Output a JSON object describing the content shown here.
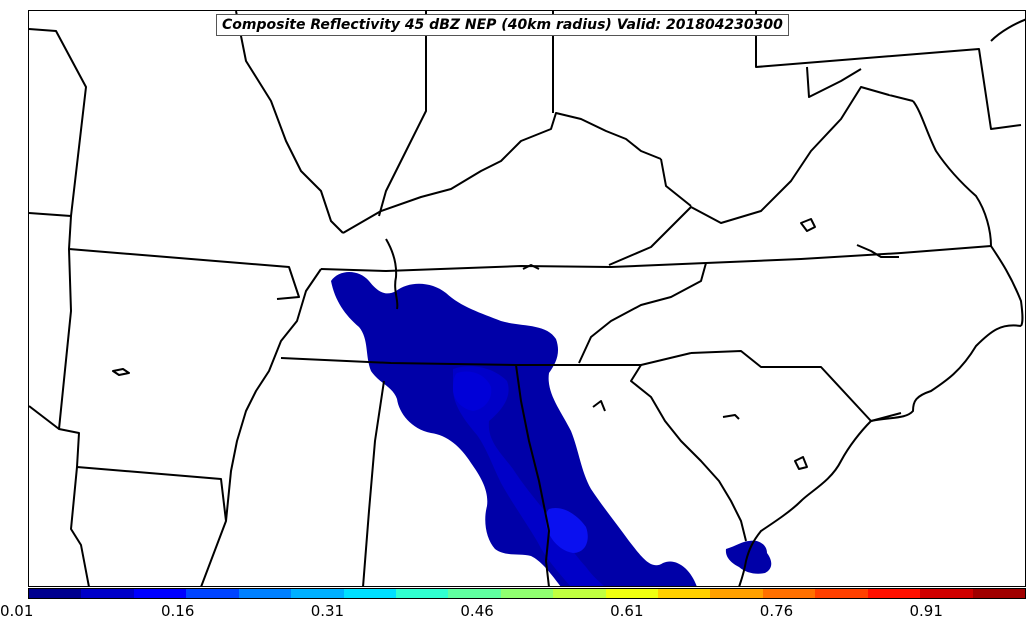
{
  "title": "Composite Reflectivity 45 dBZ NEP (40km radius) Valid: 201804230300",
  "colorbar": {
    "colors": [
      "#00008f",
      "#0000c8",
      "#0000ff",
      "#0044ff",
      "#0080ff",
      "#00b0ff",
      "#00e0ff",
      "#30ffd0",
      "#60ffa0",
      "#90ff70",
      "#c0ff40",
      "#f0ff10",
      "#ffd000",
      "#ffa000",
      "#ff7000",
      "#ff4000",
      "#ff1000",
      "#d00000",
      "#a00000"
    ],
    "tick_labels": [
      "0.01",
      "0.16",
      "0.31",
      "0.46",
      "0.61",
      "0.76",
      "0.91"
    ]
  },
  "probability_colors": {
    "low": "#0000a8",
    "mid": "#0000c8",
    "high": "#0a10f0"
  }
}
